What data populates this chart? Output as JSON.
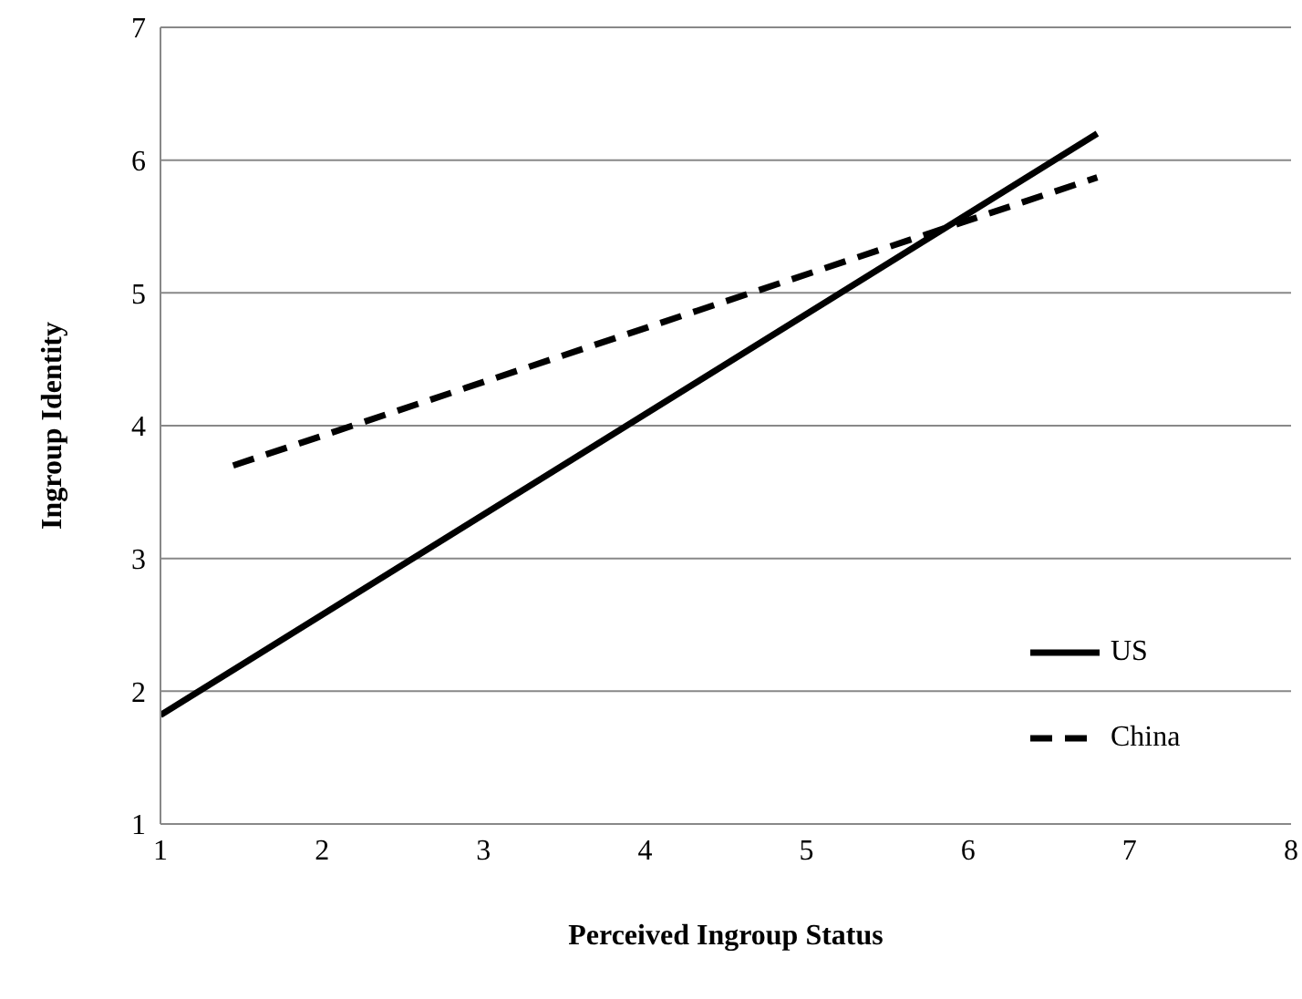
{
  "chart_data": {
    "type": "line",
    "xlabel": "Perceived  Ingroup Status",
    "ylabel": "Ingroup Identity",
    "xlim": [
      1,
      8
    ],
    "xticks": [
      1,
      2,
      3,
      4,
      5,
      6,
      7,
      8
    ],
    "ylim": [
      1,
      7
    ],
    "yticks": [
      1,
      2,
      3,
      4,
      5,
      6,
      7
    ],
    "grid": "y",
    "legend": "bottom right",
    "marker": "none",
    "series": [
      {
        "name": "US",
        "color": "#000000",
        "line_style": "solid",
        "x": [
          1,
          6.8
        ],
        "values": [
          1.82,
          6.2
        ]
      },
      {
        "name": "China",
        "color": "#000000",
        "line_style": "dashed",
        "x": [
          1.45,
          6.8
        ],
        "values": [
          3.7,
          5.87
        ]
      }
    ]
  }
}
